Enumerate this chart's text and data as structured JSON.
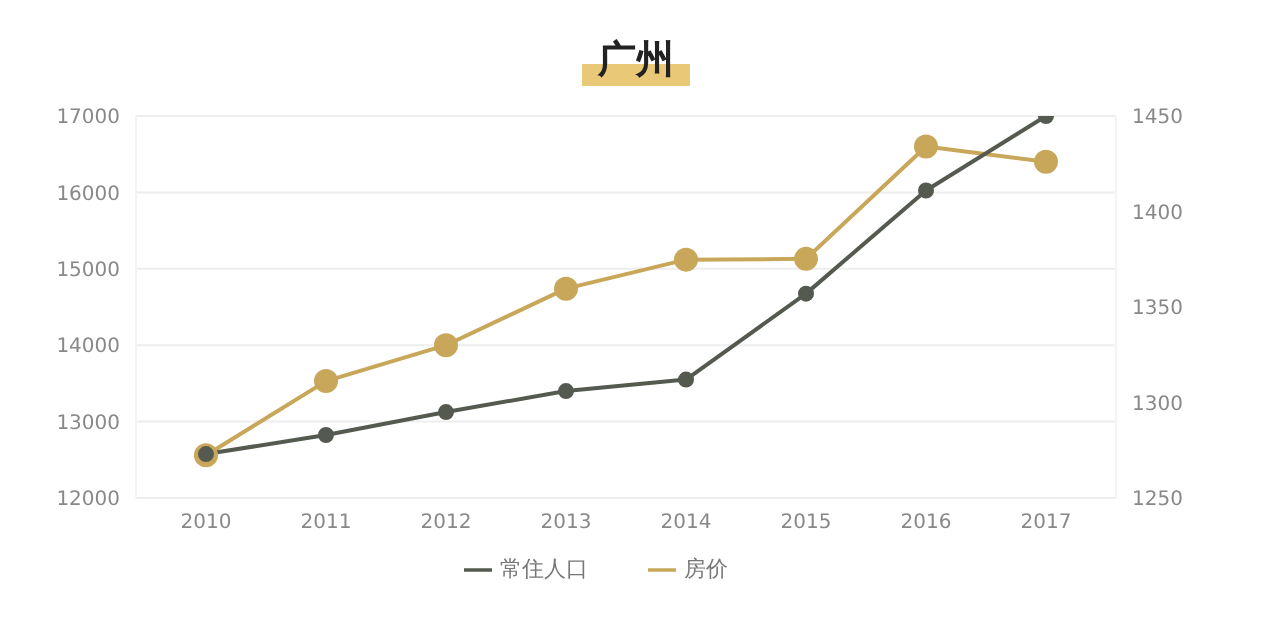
{
  "chart_data": {
    "type": "line",
    "title": "广州",
    "categories": [
      "2010",
      "2011",
      "2012",
      "2013",
      "2014",
      "2015",
      "2016",
      "2017"
    ],
    "series": [
      {
        "name": "房价",
        "color": "#c8a75a",
        "values": [
          12560,
          13530,
          14000,
          14740,
          15120,
          15130,
          16600,
          16400
        ]
      },
      {
        "name": "常住人口",
        "color": "#555a50",
        "axis": "y2",
        "values": [
          1273,
          1283,
          1295,
          1306,
          1312,
          1357,
          1411,
          1450
        ]
      }
    ],
    "ylim": [
      12000,
      17000
    ],
    "yticks": [
      12000,
      13000,
      14000,
      15000,
      16000,
      17000
    ],
    "y2lim": [
      1250,
      1450
    ],
    "y2ticks": [
      1250,
      1300,
      1350,
      1400,
      1450
    ],
    "grid": "y",
    "legend": "bottom",
    "marker": "circle",
    "line_style": "solid"
  }
}
